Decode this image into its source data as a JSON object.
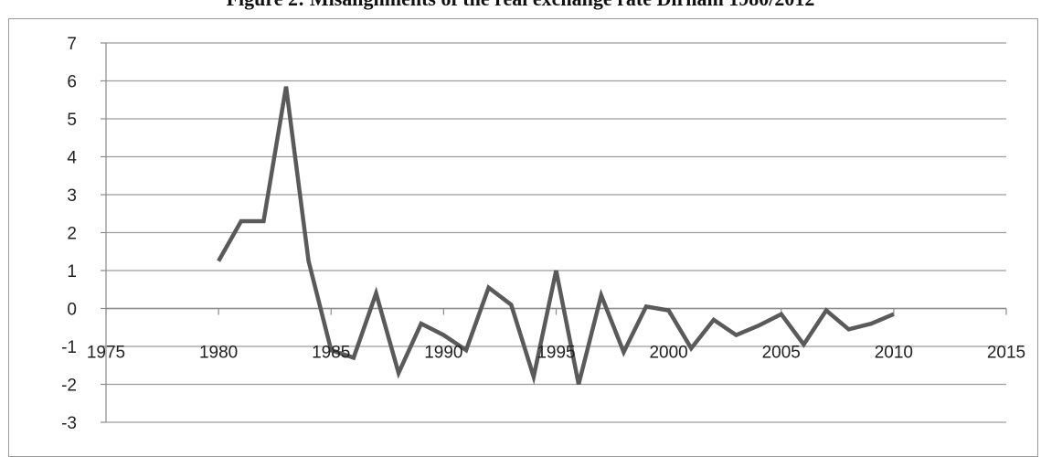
{
  "chart_data": {
    "type": "line",
    "title": "Figure 2: Misalignments of the real exchange rate Dirham 1980/2012",
    "xlabel": "",
    "ylabel": "",
    "xlim": [
      1975,
      2015
    ],
    "ylim": [
      -3,
      7
    ],
    "x_ticks": [
      1975,
      1980,
      1985,
      1990,
      1995,
      2000,
      2005,
      2010,
      2015
    ],
    "y_ticks": [
      7,
      6,
      5,
      4,
      3,
      2,
      1,
      0,
      -1,
      -2,
      -3
    ],
    "grid": "horizontal",
    "legend": "none",
    "series": [
      {
        "color": "#5a5a5a",
        "points": [
          [
            1980,
            1.25
          ],
          [
            1981,
            2.3
          ],
          [
            1982,
            2.3
          ],
          [
            1983,
            5.85
          ],
          [
            1984,
            1.25
          ],
          [
            1985,
            -1.1
          ],
          [
            1986,
            -1.3
          ],
          [
            1987,
            0.4
          ],
          [
            1988,
            -1.7
          ],
          [
            1989,
            -0.4
          ],
          [
            1990,
            -0.7
          ],
          [
            1991,
            -1.1
          ],
          [
            1992,
            0.55
          ],
          [
            1993,
            0.1
          ],
          [
            1994,
            -1.8
          ],
          [
            1995,
            1.0
          ],
          [
            1996,
            -2.0
          ],
          [
            1997,
            0.35
          ],
          [
            1998,
            -1.15
          ],
          [
            1999,
            0.05
          ],
          [
            2000,
            -0.05
          ],
          [
            2001,
            -1.05
          ],
          [
            2002,
            -0.3
          ],
          [
            2003,
            -0.7
          ],
          [
            2004,
            -0.45
          ],
          [
            2005,
            -0.15
          ],
          [
            2006,
            -0.95
          ],
          [
            2007,
            -0.05
          ],
          [
            2008,
            -0.55
          ],
          [
            2009,
            -0.4
          ],
          [
            2010,
            -0.15
          ]
        ]
      }
    ]
  }
}
